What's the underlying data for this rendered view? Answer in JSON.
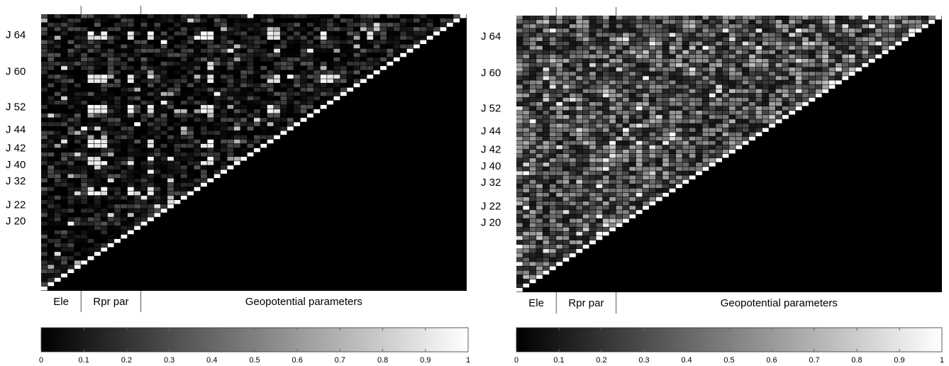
{
  "chart_data": [
    {
      "type": "heatmap",
      "panel": "left",
      "matrix_size": 64,
      "triangle": "upper",
      "diagonal_value": 1.0,
      "y_tick_labels": [
        "J 64",
        "J 60",
        "J 52",
        "J 44",
        "J 42",
        "J 40",
        "J 32",
        "J 22",
        "J 20"
      ],
      "sections": [
        "Ele",
        "Rpr par",
        "Geopotential parameters"
      ],
      "section_boundaries": [
        6,
        15
      ],
      "pattern": "sparse; mostly dark values 0.0–0.3 with bright banded blocks (0.8–1.0) in Rpr par and Geopotential columns",
      "colorbar": {
        "min": 0,
        "max": 1,
        "ticks": [
          "0",
          "0.1",
          "0.2",
          "0.3",
          "0.4",
          "0.5",
          "0.6",
          "0.7",
          "0.8",
          "0.9",
          "1"
        ],
        "colormap": "gray"
      }
    },
    {
      "type": "heatmap",
      "panel": "right",
      "matrix_size": 64,
      "triangle": "upper",
      "diagonal_value": 1.0,
      "y_tick_labels": [
        "J 64",
        "J 60",
        "J 52",
        "J 44",
        "J 42",
        "J 40",
        "J 32",
        "J 22",
        "J 20"
      ],
      "sections": [
        "Ele",
        "Rpr par",
        "Geopotential parameters"
      ],
      "section_boundaries": [
        6,
        15
      ],
      "pattern": "dense; values spread 0.1–0.6 with scattered lighter cells",
      "colorbar": {
        "min": 0,
        "max": 1,
        "ticks": [
          "0",
          "0.1",
          "0.2",
          "0.3",
          "0.4",
          "0.5",
          "0.6",
          "0.7",
          "0.8",
          "0.9",
          "1"
        ],
        "colormap": "gray"
      }
    }
  ]
}
